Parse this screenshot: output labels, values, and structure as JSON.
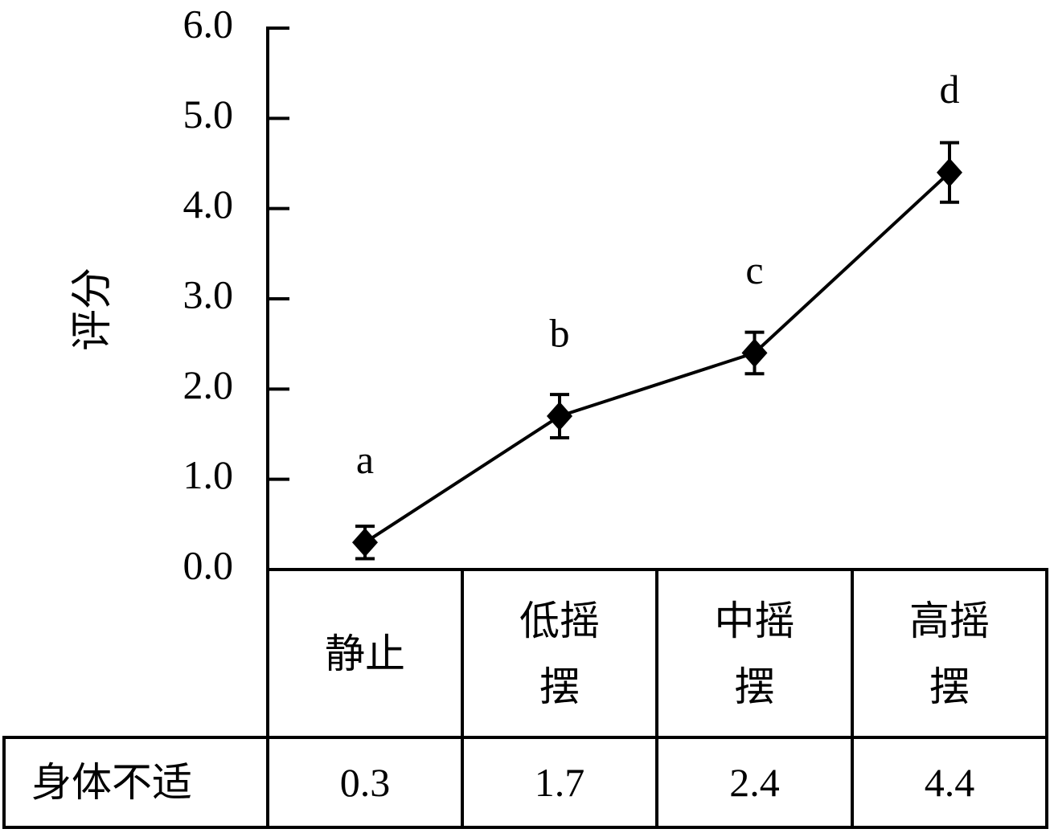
{
  "chart_data": {
    "type": "line",
    "ylabel": "评分",
    "categories": [
      "静止",
      "低摇摆",
      "中摇摆",
      "高摇摆"
    ],
    "series": [
      {
        "name": "身体不适",
        "color": "#000000",
        "values": [
          0.3,
          1.7,
          2.4,
          4.4
        ],
        "errors": [
          0.18,
          0.24,
          0.23,
          0.33
        ]
      }
    ],
    "annotations": [
      "a",
      "b",
      "c",
      "d"
    ],
    "ylim": [
      0,
      6
    ],
    "yticks": [
      {
        "value": 0,
        "label": "0.0"
      },
      {
        "value": 1,
        "label": "1.0"
      },
      {
        "value": 2,
        "label": "2.0"
      },
      {
        "value": 3,
        "label": "3.0"
      },
      {
        "value": 4,
        "label": "4.0"
      },
      {
        "value": 5,
        "label": "5.0"
      },
      {
        "value": 6,
        "label": "6.0"
      }
    ]
  }
}
